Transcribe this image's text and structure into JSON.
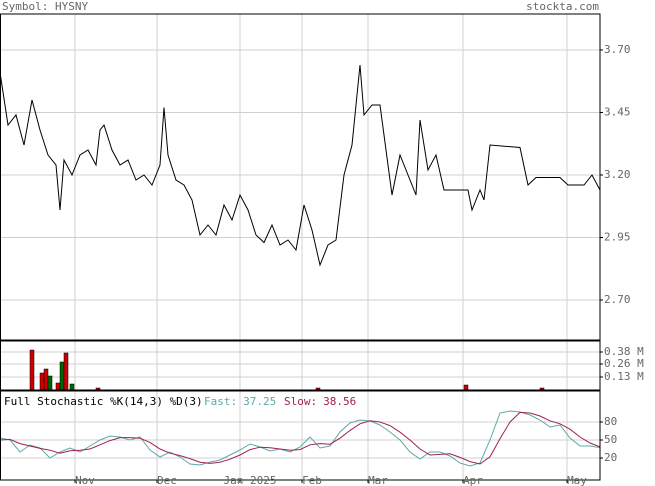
{
  "header": {
    "symbol": "Symbol: HYSNY",
    "site": "stockta.com"
  },
  "chart_data": [
    {
      "type": "line",
      "color": "#000000",
      "grid": true,
      "x": [
        0,
        2,
        4,
        6,
        8,
        10,
        12,
        14,
        15,
        16,
        18,
        20,
        22,
        24,
        25,
        26,
        28,
        30,
        32,
        34,
        36,
        38,
        40,
        41,
        42,
        44,
        46,
        48,
        50,
        52,
        54,
        56,
        58,
        60,
        62,
        64,
        66,
        68,
        70,
        72,
        74,
        76,
        78,
        80,
        82,
        84,
        86,
        88,
        90,
        91,
        93,
        95,
        97,
        98,
        100,
        102,
        104,
        105,
        107,
        109,
        111,
        117,
        118,
        120,
        121,
        122.5,
        130,
        132,
        134,
        140,
        142,
        146,
        148,
        150
      ],
      "values": [
        3.61,
        3.4,
        3.44,
        3.32,
        3.5,
        3.38,
        3.28,
        3.24,
        3.06,
        3.26,
        3.2,
        3.28,
        3.3,
        3.24,
        3.38,
        3.4,
        3.3,
        3.24,
        3.26,
        3.18,
        3.2,
        3.16,
        3.24,
        3.47,
        3.28,
        3.18,
        3.16,
        3.1,
        2.96,
        3.0,
        2.96,
        3.08,
        3.02,
        3.12,
        3.06,
        2.96,
        2.93,
        3.0,
        2.92,
        2.94,
        2.9,
        3.08,
        2.98,
        2.84,
        2.92,
        2.94,
        3.2,
        3.32,
        3.64,
        3.44,
        3.48,
        3.48,
        3.24,
        3.12,
        3.28,
        3.2,
        3.12,
        3.42,
        3.22,
        3.28,
        3.14,
        3.14,
        3.06,
        3.14,
        3.1,
        3.32,
        3.31,
        3.16,
        3.19,
        3.19,
        3.16,
        3.16,
        3.2,
        3.14
      ],
      "xlim": [
        0,
        150
      ],
      "ylim": [
        2.54,
        3.844
      ],
      "yticks": [
        {
          "value": 3.7,
          "label": "3.70"
        },
        3.45,
        {
          "value": 3.2,
          "label": "3.20"
        },
        2.95,
        {
          "value": 2.7,
          "label": "2.70"
        }
      ]
    },
    {
      "type": "bar",
      "grid": true,
      "x": [
        8,
        10.5,
        11.5,
        12.5,
        14.5,
        15.5,
        16.5,
        18,
        24.5,
        79.5,
        116.5,
        135.5
      ],
      "values": [
        400000,
        170000,
        210000,
        140000,
        70000,
        280000,
        370000,
        60000,
        20000,
        20000,
        50000,
        20000
      ],
      "colors": [
        "#cc0000",
        "#cc0000",
        "#cc0000",
        "#006600",
        "#cc0000",
        "#006600",
        "#cc0000",
        "#006600",
        "#cc0000",
        "#cc0000",
        "#cc0000",
        "#cc0000"
      ],
      "xlim": [
        0,
        150
      ],
      "ylim": [
        0,
        490000
      ],
      "yticks": [
        {
          "value": 380000,
          "label": "0.38 M"
        },
        {
          "value": 260000,
          "label": "0.26 M"
        },
        {
          "value": 130000,
          "label": "0.13 M"
        }
      ]
    },
    {
      "type": "line",
      "title": "Full Stochastic %K(14,3) %D(3)",
      "grid": true,
      "x": [
        0,
        2.5,
        5,
        7.5,
        10,
        12.5,
        15,
        17.5,
        20,
        22.5,
        25,
        27.5,
        30,
        32.5,
        35,
        37.5,
        40,
        42.5,
        45,
        47.5,
        50,
        52.5,
        55,
        57.5,
        60,
        62.5,
        65,
        67.5,
        70,
        72.5,
        75,
        77.5,
        80,
        82.5,
        85,
        87.5,
        90,
        92.5,
        95,
        97.5,
        100,
        102.5,
        105,
        107.5,
        110,
        112.5,
        115,
        117.5,
        120,
        122.5,
        125,
        127.5,
        130,
        132.5,
        135,
        137.5,
        140,
        142.5,
        145,
        147.5,
        150
      ],
      "series": [
        {
          "name": "Fast:",
          "color": "#5fa8a8",
          "values": [
            53.3,
            50,
            30,
            41.7,
            36.7,
            20,
            30,
            36.7,
            30,
            40,
            50,
            56.7,
            55,
            50,
            55,
            33.3,
            21.7,
            30,
            21.7,
            10,
            8.3,
            13.3,
            16.7,
            25,
            33.3,
            43.3,
            38.3,
            31.7,
            35,
            30,
            38.3,
            55,
            36.7,
            40,
            63.3,
            78.3,
            83.3,
            81.7,
            75,
            63.3,
            50,
            30,
            18.3,
            30,
            30,
            23.3,
            11.7,
            6.7,
            11.7,
            50,
            95,
            98.3,
            96.7,
            91.7,
            83.3,
            71.7,
            75,
            53.3,
            40,
            40,
            37.25
          ]
        },
        {
          "name": "Slow:",
          "color": "#a02050",
          "values": [
            50,
            51,
            44,
            40,
            36,
            33,
            28,
            32,
            33,
            35,
            42,
            49,
            54,
            54,
            53,
            46,
            35,
            28,
            24,
            19,
            13,
            11,
            13,
            18,
            25,
            34,
            38,
            37,
            35,
            33,
            34,
            42,
            44,
            43,
            53,
            66,
            77,
            82,
            80,
            74,
            63,
            50,
            35,
            25,
            26,
            27,
            21,
            14,
            10,
            22,
            52,
            80,
            96,
            95,
            90,
            82,
            77,
            68,
            55,
            45,
            38.56
          ]
        }
      ],
      "xlim": [
        0,
        150
      ],
      "ylim": [
        -16.7,
        131.7
      ],
      "yticks": [
        80,
        50,
        20
      ],
      "xticks": [
        {
          "value": 18.75,
          "label": "Nov"
        },
        {
          "value": 39.25,
          "label": "Dec"
        },
        {
          "value": 60,
          "label": "Jan 2025"
        },
        {
          "value": 75.5,
          "label": "Feb"
        },
        {
          "value": 92,
          "label": "Mar"
        },
        {
          "value": 115.75,
          "label": "Apr"
        },
        {
          "value": 141.75,
          "label": "May"
        }
      ]
    }
  ]
}
